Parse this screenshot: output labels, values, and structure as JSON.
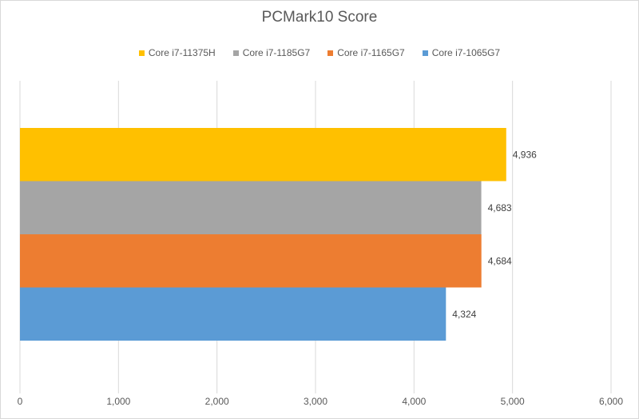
{
  "chart_data": {
    "type": "bar",
    "orientation": "horizontal",
    "title": "PCMark10 Score",
    "xlabel": "",
    "ylabel": "",
    "xlim": [
      0,
      6000
    ],
    "x_ticks": [
      "0",
      "1,000",
      "2,000",
      "3,000",
      "4,000",
      "5,000",
      "6,000"
    ],
    "grid": "vertical gridlines on",
    "legend_position": "top",
    "series": [
      {
        "name": "Core i7-11375H",
        "value": 4936,
        "label": "4,936",
        "color": "#FFC000"
      },
      {
        "name": "Core i7-1185G7",
        "value": 4683,
        "label": "4,683",
        "color": "#A5A5A5"
      },
      {
        "name": "Core i7-1165G7",
        "value": 4684,
        "label": "4,684",
        "color": "#ED7D31"
      },
      {
        "name": "Core i7-1065G7",
        "value": 4324,
        "label": "4,324",
        "color": "#5B9BD5"
      }
    ]
  }
}
